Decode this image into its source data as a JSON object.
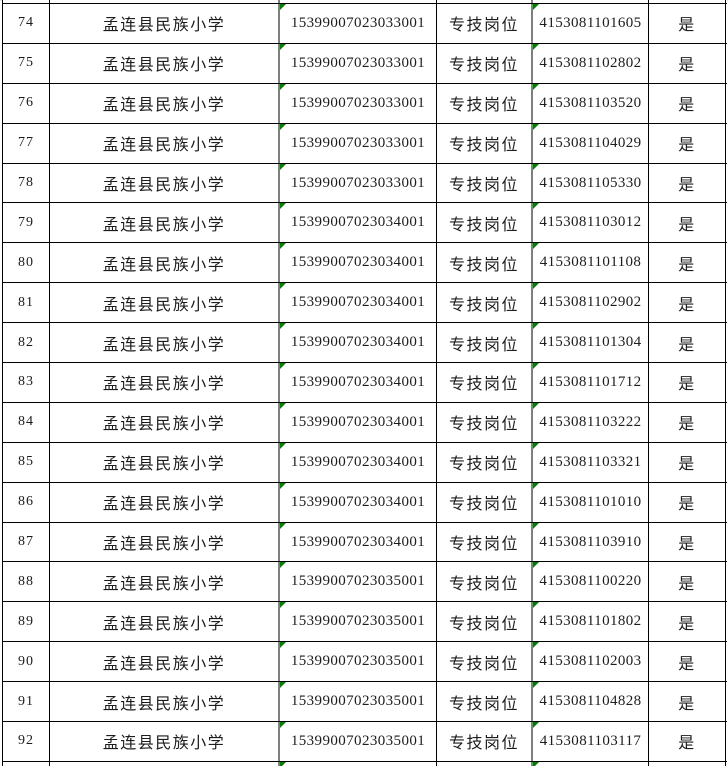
{
  "colors": {
    "grid_line": "#000000",
    "code_column_divider_gray": "#7f7f7f",
    "error_indicator_green": "#008000",
    "background": "#ffffff"
  },
  "table": {
    "rows": [
      {
        "no": "74",
        "school": "孟连县民族小学",
        "unit_code": "15399007023033001",
        "post_type": "专技岗位",
        "post_code": "4153081101605",
        "confirm": "是"
      },
      {
        "no": "75",
        "school": "孟连县民族小学",
        "unit_code": "15399007023033001",
        "post_type": "专技岗位",
        "post_code": "4153081102802",
        "confirm": "是"
      },
      {
        "no": "76",
        "school": "孟连县民族小学",
        "unit_code": "15399007023033001",
        "post_type": "专技岗位",
        "post_code": "4153081103520",
        "confirm": "是"
      },
      {
        "no": "77",
        "school": "孟连县民族小学",
        "unit_code": "15399007023033001",
        "post_type": "专技岗位",
        "post_code": "4153081104029",
        "confirm": "是"
      },
      {
        "no": "78",
        "school": "孟连县民族小学",
        "unit_code": "15399007023033001",
        "post_type": "专技岗位",
        "post_code": "4153081105330",
        "confirm": "是"
      },
      {
        "no": "79",
        "school": "孟连县民族小学",
        "unit_code": "15399007023034001",
        "post_type": "专技岗位",
        "post_code": "4153081103012",
        "confirm": "是"
      },
      {
        "no": "80",
        "school": "孟连县民族小学",
        "unit_code": "15399007023034001",
        "post_type": "专技岗位",
        "post_code": "4153081101108",
        "confirm": "是"
      },
      {
        "no": "81",
        "school": "孟连县民族小学",
        "unit_code": "15399007023034001",
        "post_type": "专技岗位",
        "post_code": "4153081102902",
        "confirm": "是"
      },
      {
        "no": "82",
        "school": "孟连县民族小学",
        "unit_code": "15399007023034001",
        "post_type": "专技岗位",
        "post_code": "4153081101304",
        "confirm": "是"
      },
      {
        "no": "83",
        "school": "孟连县民族小学",
        "unit_code": "15399007023034001",
        "post_type": "专技岗位",
        "post_code": "4153081101712",
        "confirm": "是"
      },
      {
        "no": "84",
        "school": "孟连县民族小学",
        "unit_code": "15399007023034001",
        "post_type": "专技岗位",
        "post_code": "4153081103222",
        "confirm": "是"
      },
      {
        "no": "85",
        "school": "孟连县民族小学",
        "unit_code": "15399007023034001",
        "post_type": "专技岗位",
        "post_code": "4153081103321",
        "confirm": "是"
      },
      {
        "no": "86",
        "school": "孟连县民族小学",
        "unit_code": "15399007023034001",
        "post_type": "专技岗位",
        "post_code": "4153081101010",
        "confirm": "是"
      },
      {
        "no": "87",
        "school": "孟连县民族小学",
        "unit_code": "15399007023034001",
        "post_type": "专技岗位",
        "post_code": "4153081103910",
        "confirm": "是"
      },
      {
        "no": "88",
        "school": "孟连县民族小学",
        "unit_code": "15399007023035001",
        "post_type": "专技岗位",
        "post_code": "4153081100220",
        "confirm": "是"
      },
      {
        "no": "89",
        "school": "孟连县民族小学",
        "unit_code": "15399007023035001",
        "post_type": "专技岗位",
        "post_code": "4153081101802",
        "confirm": "是"
      },
      {
        "no": "90",
        "school": "孟连县民族小学",
        "unit_code": "15399007023035001",
        "post_type": "专技岗位",
        "post_code": "4153081102003",
        "confirm": "是"
      },
      {
        "no": "91",
        "school": "孟连县民族小学",
        "unit_code": "15399007023035001",
        "post_type": "专技岗位",
        "post_code": "4153081104828",
        "confirm": "是"
      },
      {
        "no": "92",
        "school": "孟连县民族小学",
        "unit_code": "15399007023035001",
        "post_type": "专技岗位",
        "post_code": "4153081103117",
        "confirm": "是"
      }
    ]
  }
}
